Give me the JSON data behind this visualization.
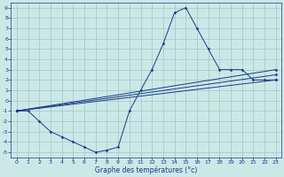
{
  "title": "Graphe des températures (°c)",
  "background_color": "#cce8e6",
  "grid_color": "#9dc8c6",
  "line_color": "#1a3a8c",
  "xlim": [
    -0.5,
    23.5
  ],
  "ylim": [
    -5.5,
    9.5
  ],
  "xticks": [
    0,
    1,
    2,
    3,
    4,
    5,
    6,
    7,
    8,
    9,
    10,
    11,
    12,
    13,
    14,
    15,
    16,
    17,
    18,
    19,
    20,
    21,
    22,
    23
  ],
  "yticks": [
    -5,
    -4,
    -3,
    -2,
    -1,
    0,
    1,
    2,
    3,
    4,
    5,
    6,
    7,
    8,
    9
  ],
  "curve": {
    "x": [
      0,
      1,
      2,
      3,
      4,
      5,
      6,
      7,
      8,
      9,
      10,
      11,
      12,
      13,
      14,
      15,
      16,
      17,
      18,
      19,
      20,
      21,
      22,
      23
    ],
    "y": [
      -1,
      -1,
      -2,
      -3,
      -3.5,
      -4,
      -4.5,
      -5,
      -4.8,
      -4.5,
      -1,
      1,
      3,
      5.5,
      8.5,
      9,
      7,
      5,
      3,
      3,
      3,
      2,
      2,
      2
    ]
  },
  "line1": {
    "x": [
      0,
      23
    ],
    "y": [
      -1,
      2
    ]
  },
  "line2": {
    "x": [
      0,
      23
    ],
    "y": [
      -1,
      2.5
    ]
  },
  "line3": {
    "x": [
      0,
      23
    ],
    "y": [
      -1,
      3
    ]
  }
}
